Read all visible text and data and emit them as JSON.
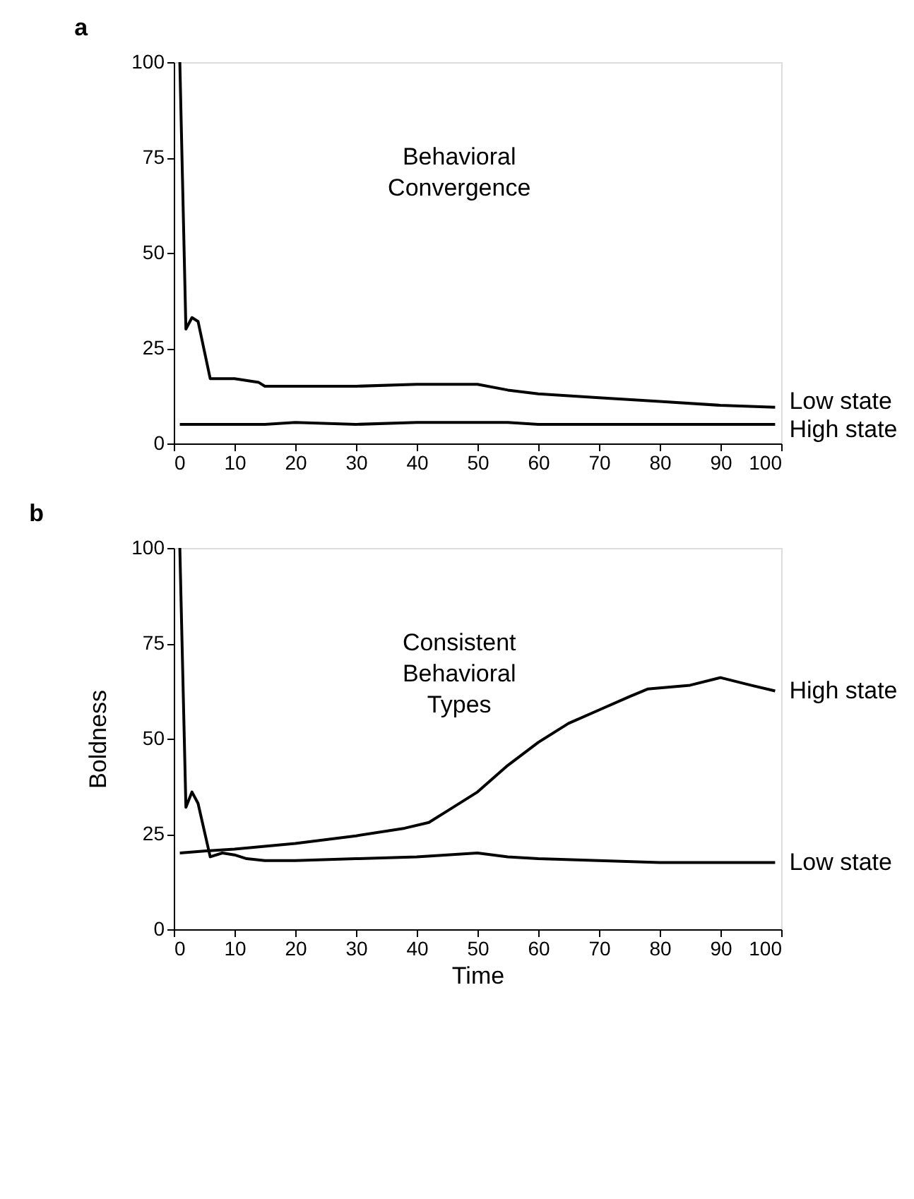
{
  "chart_data": [
    {
      "type": "line",
      "title": "a",
      "x": [
        1,
        2,
        3,
        4,
        6,
        10,
        14,
        15,
        20,
        30,
        40,
        50,
        55,
        60,
        70,
        80,
        90,
        99
      ],
      "xlim": [
        0,
        100
      ],
      "xticks": [
        0,
        10,
        20,
        30,
        40,
        50,
        60,
        70,
        80,
        90,
        100
      ],
      "ylim": [
        0,
        100
      ],
      "yticks": [
        0,
        25,
        50,
        75,
        100
      ],
      "series": [
        {
          "name": "Low state",
          "color": "#000000",
          "values": [
            100,
            30,
            33,
            32,
            17,
            17,
            16,
            15,
            15,
            15,
            15.5,
            15.5,
            14,
            13,
            12,
            11,
            10,
            9.5
          ]
        },
        {
          "name": "High state",
          "color": "#000000",
          "values": [
            5,
            5,
            5,
            5,
            5,
            5,
            5,
            5,
            5.5,
            5,
            5.5,
            5.5,
            5.5,
            5,
            5,
            5,
            5,
            5
          ]
        }
      ],
      "annotations": [
        "Behavioral\nConvergence"
      ],
      "grid": false,
      "legend": false
    },
    {
      "type": "line",
      "title": "b",
      "xlabel": "Time",
      "ylabel": "Boldness",
      "xlim": [
        0,
        100
      ],
      "xticks": [
        0,
        10,
        20,
        30,
        40,
        50,
        60,
        70,
        80,
        90,
        100
      ],
      "ylim": [
        0,
        100
      ],
      "yticks": [
        0,
        25,
        50,
        75,
        100
      ],
      "series": [
        {
          "name": "High state",
          "color": "#000000",
          "x": [
            1,
            5,
            10,
            20,
            30,
            38,
            42,
            45,
            50,
            55,
            60,
            65,
            70,
            75,
            78,
            85,
            90,
            95,
            99
          ],
          "values": [
            20,
            20.5,
            21,
            22.5,
            24.5,
            26.5,
            28,
            31,
            36,
            43,
            49,
            54,
            57.5,
            61,
            63,
            64,
            66,
            64,
            62.5
          ]
        },
        {
          "name": "Low state",
          "color": "#000000",
          "x": [
            1,
            2,
            3,
            4,
            6,
            8,
            10,
            12,
            15,
            20,
            30,
            40,
            50,
            55,
            60,
            70,
            80,
            90,
            99
          ],
          "values": [
            100,
            32,
            36,
            33,
            19,
            20,
            19.5,
            18.5,
            18,
            18,
            18.5,
            19,
            20,
            19,
            18.5,
            18,
            17.5,
            17.5,
            17.5
          ]
        }
      ],
      "annotations": [
        "Consistent\nBehavioral\nTypes"
      ],
      "grid": false,
      "legend": false
    }
  ]
}
